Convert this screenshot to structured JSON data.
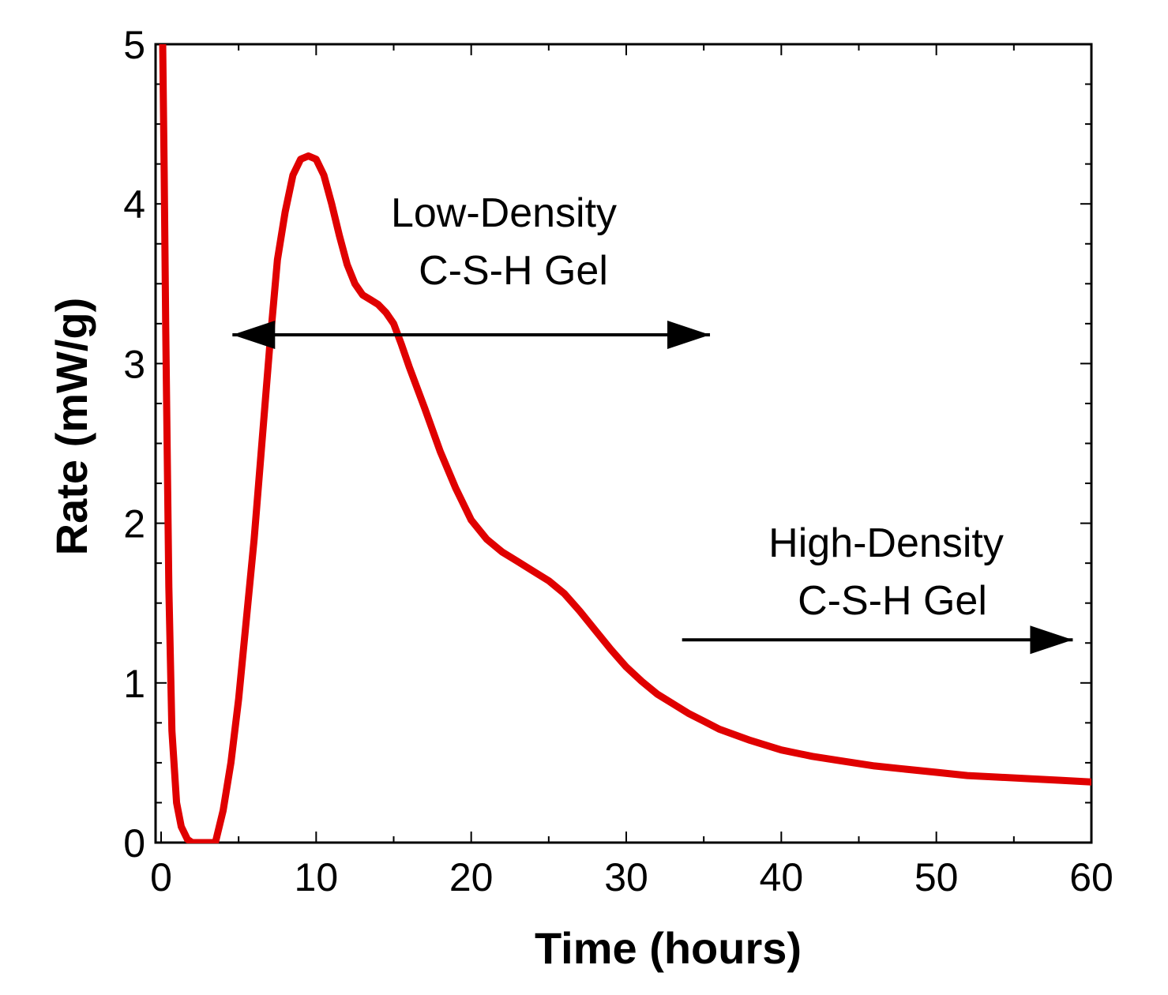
{
  "chart_data": {
    "type": "line",
    "title": "",
    "xlabel": "Time (hours)",
    "ylabel": "Rate (mW/g)",
    "xlim": [
      0,
      60
    ],
    "ylim": [
      0,
      5
    ],
    "xticks": [
      0,
      10,
      20,
      30,
      40,
      50,
      60
    ],
    "yticks": [
      0,
      1,
      2,
      3,
      4,
      5
    ],
    "x_tick_labels": [
      "0",
      "10",
      "20",
      "30",
      "40",
      "50",
      "60"
    ],
    "y_tick_labels": [
      "0",
      "1",
      "2",
      "3",
      "4",
      "5"
    ],
    "grid": false,
    "legend": "none",
    "series": [
      {
        "name": "Rate",
        "color": "#e00000",
        "x": [
          0.1,
          0.2,
          0.3,
          0.5,
          0.7,
          1.0,
          1.3,
          1.7,
          2.0,
          2.5,
          3.0,
          3.5,
          4.0,
          4.5,
          5.0,
          5.5,
          6.0,
          6.5,
          7.0,
          7.5,
          8.0,
          8.5,
          9.0,
          9.5,
          10.0,
          10.5,
          11.0,
          11.5,
          12.0,
          12.5,
          13.0,
          13.5,
          14.0,
          14.5,
          15.0,
          15.5,
          16.0,
          17.0,
          18.0,
          19.0,
          20.0,
          21.0,
          22.0,
          23.0,
          24.0,
          25.0,
          26.0,
          27.0,
          28.0,
          29.0,
          30.0,
          31.0,
          32.0,
          33.0,
          34.0,
          35.0,
          36.0,
          38.0,
          40.0,
          42.0,
          44.0,
          46.0,
          48.0,
          50.0,
          52.0,
          54.0,
          56.0,
          58.0,
          60.0
        ],
        "y": [
          5.0,
          4.2,
          3.2,
          1.6,
          0.7,
          0.25,
          0.1,
          0.02,
          0.0,
          0.0,
          0.0,
          0.0,
          0.2,
          0.5,
          0.9,
          1.4,
          1.9,
          2.5,
          3.1,
          3.65,
          3.95,
          4.18,
          4.28,
          4.3,
          4.28,
          4.18,
          4.0,
          3.8,
          3.62,
          3.5,
          3.43,
          3.4,
          3.37,
          3.32,
          3.25,
          3.12,
          2.98,
          2.72,
          2.45,
          2.22,
          2.02,
          1.9,
          1.82,
          1.76,
          1.7,
          1.64,
          1.56,
          1.45,
          1.33,
          1.21,
          1.1,
          1.01,
          0.93,
          0.87,
          0.81,
          0.76,
          0.71,
          0.64,
          0.58,
          0.54,
          0.51,
          0.48,
          0.46,
          0.44,
          0.42,
          0.41,
          0.4,
          0.39,
          0.38
        ]
      }
    ],
    "annotations": [
      {
        "lines": [
          "Low-Density",
          "C-S-H Gel"
        ],
        "arrow": "double",
        "arrow_from_x": 4.6,
        "arrow_to_x": 35.4,
        "arrow_y": 3.18
      },
      {
        "lines": [
          "High-Density",
          "C-S-H Gel"
        ],
        "arrow": "right",
        "arrow_from_x": 33.6,
        "arrow_to_x": 58.8,
        "arrow_y": 1.27
      }
    ]
  }
}
